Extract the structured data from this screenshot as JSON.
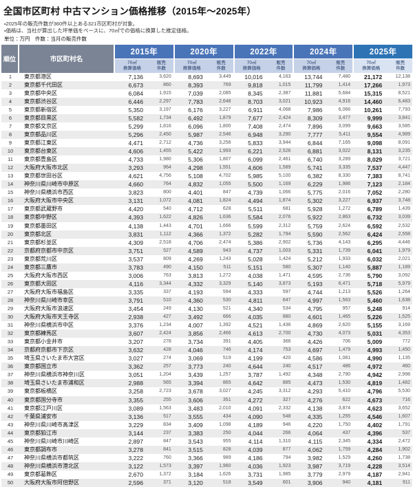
{
  "title": "全国市区町村 中古マンション価格推移（2015年～2025年）",
  "notes": [
    "・2025年の販売件数が360件以上ある321市区町村が対象。",
    "・価格は、当社が算出した坪単価をベースに、70㎡での価格に換算した推定価格。",
    "単位：万円　件数：当月の販売件数"
  ],
  "colors": {
    "header_gray": "#7a8494",
    "year_header_blue": "#4a74b8",
    "year_header_blue_2025": "#2e74b5",
    "subheader_blue": "#c5d1e7",
    "subheader_blue_2025": "#d9e3f2",
    "row_stripe": "#ebebeb"
  },
  "chart_data": {
    "type": "table",
    "title": "全国市区町村 中古マンション価格推移（2015年～2025年）",
    "unit_note": "単位：万円　件数：当月の販売件数",
    "rank_header": "順位",
    "name_header": "市区町村名",
    "years": [
      "2015年",
      "2020年",
      "2022年",
      "2024年",
      "2025年"
    ],
    "subcol_price": {
      "l1": "70㎡",
      "l2": "換算価格"
    },
    "subcol_count": {
      "l1": "販売",
      "l2": "件数"
    },
    "rows": [
      [
        1,
        "東京都港区",
        "7,136",
        "3,620",
        "8,693",
        "3,449",
        "10,016",
        "4,163",
        "13,744",
        "7,480",
        "21,172",
        "12,138"
      ],
      [
        2,
        "東京都千代田区",
        "6,673",
        "860",
        "8,393",
        "769",
        "9,818",
        "1,015",
        "11,799",
        "1,414",
        "17,266",
        "1,973"
      ],
      [
        3,
        "東京都中央区",
        "6,084",
        "1,915",
        "7,039",
        "2,085",
        "8,345",
        "2,387",
        "11,881",
        "5,684",
        "15,315",
        "8,521"
      ],
      [
        4,
        "東京都渋谷区",
        "6,446",
        "2,297",
        "7,783",
        "2,648",
        "8,703",
        "3,021",
        "10,923",
        "4,916",
        "14,460",
        "6,483"
      ],
      [
        5,
        "東京都新宿区",
        "5,350",
        "3,197",
        "6,176",
        "3,227",
        "6,911",
        "4,068",
        "7,986",
        "6,066",
        "10,261",
        "7,793"
      ],
      [
        6,
        "東京都目黒区",
        "5,582",
        "1,734",
        "6,492",
        "1,879",
        "7,677",
        "2,424",
        "8,309",
        "3,477",
        "9,999",
        "3,841"
      ],
      [
        7,
        "東京都文京区",
        "5,299",
        "1,816",
        "6,096",
        "1,800",
        "7,408",
        "2,474",
        "7,896",
        "3,099",
        "9,663",
        "3,585"
      ],
      [
        8,
        "東京都品川区",
        "5,296",
        "2,450",
        "5,987",
        "2,546",
        "6,948",
        "3,290",
        "7,777",
        "5,411",
        "9,554",
        "4,989"
      ],
      [
        9,
        "東京都江東区",
        "4,471",
        "2,712",
        "4,736",
        "3,256",
        "5,833",
        "3,944",
        "6,844",
        "7,165",
        "9,098",
        "8,091"
      ],
      [
        10,
        "東京都台東区",
        "4,606",
        "1,455",
        "5,422",
        "1,993",
        "6,221",
        "2,526",
        "6,881",
        "3,022",
        "8,131",
        "3,235"
      ],
      [
        11,
        "東京都豊島区",
        "4,733",
        "1,980",
        "5,306",
        "1,807",
        "6,099",
        "2,461",
        "6,740",
        "3,289",
        "8,029",
        "3,721"
      ],
      [
        12,
        "大阪府大阪市北区",
        "3,293",
        "964",
        "4,298",
        "1,551",
        "4,606",
        "1,589",
        "5,741",
        "3,335",
        "7,537",
        "4,447"
      ],
      [
        13,
        "東京都世田谷区",
        "4,621",
        "4,756",
        "5,108",
        "4,702",
        "5,985",
        "5,100",
        "6,382",
        "8,330",
        "7,383",
        "8,741"
      ],
      [
        14,
        "神奈川県川崎市中原区",
        "4,660",
        "764",
        "4,832",
        "1,055",
        "5,500",
        "1,169",
        "6,229",
        "1,986",
        "7,123",
        "2,184"
      ],
      [
        15,
        "神奈川県横浜市西区",
        "3,823",
        "800",
        "4,401",
        "847",
        "4,739",
        "1,066",
        "5,775",
        "2,016",
        "7,052",
        "2,280"
      ],
      [
        16,
        "大阪府大阪市中央区",
        "3,131",
        "1,072",
        "4,081",
        "1,824",
        "4,494",
        "1,874",
        "5,302",
        "3,227",
        "6,937",
        "3,748"
      ],
      [
        17,
        "東京都武蔵野市",
        "4,420",
        "540",
        "4,712",
        "628",
        "5,511",
        "681",
        "5,928",
        "1,272",
        "6,789",
        "1,439"
      ],
      [
        18,
        "東京都中野区",
        "4,393",
        "1,622",
        "4,826",
        "1,636",
        "5,584",
        "2,076",
        "5,922",
        "2,863",
        "6,732",
        "3,039"
      ],
      [
        19,
        "東京都墨田区",
        "4,138",
        "1,443",
        "4,701",
        "1,666",
        "5,599",
        "2,312",
        "5,759",
        "2,624",
        "6,592",
        "2,532"
      ],
      [
        20,
        "東京都北区",
        "3,831",
        "1,112",
        "4,366",
        "1,372",
        "5,282",
        "1,794",
        "5,590",
        "2,562",
        "6,424",
        "2,558"
      ],
      [
        21,
        "東京都杉並区",
        "4,309",
        "2,518",
        "4,706",
        "2,474",
        "5,386",
        "2,902",
        "5,736",
        "4,143",
        "6,295",
        "4,446"
      ],
      [
        22,
        "京都府京都市中京区",
        "3,751",
        "527",
        "4,589",
        "943",
        "4,737",
        "1,003",
        "5,331",
        "1,739",
        "6,041",
        "1,979"
      ],
      [
        23,
        "東京都荒川区",
        "3,537",
        "809",
        "4,269",
        "1,243",
        "5,028",
        "1,424",
        "5,212",
        "1,933",
        "6,032",
        "2,021"
      ],
      [
        24,
        "東京都三鷹市",
        "3,783",
        "490",
        "4,150",
        "511",
        "5,151",
        "580",
        "5,307",
        "1,140",
        "5,887",
        "1,189"
      ],
      [
        25,
        "大阪府大阪市西区",
        "3,006",
        "763",
        "3,813",
        "1,272",
        "4,038",
        "1,471",
        "4,595",
        "2,736",
        "5,790",
        "3,092"
      ],
      [
        26,
        "東京都大田区",
        "4,116",
        "3,344",
        "4,332",
        "3,329",
        "5,140",
        "3,873",
        "5,193",
        "6,471",
        "5,718",
        "5,979"
      ],
      [
        27,
        "大阪府大阪市福島区",
        "3,335",
        "337",
        "4,193",
        "594",
        "4,333",
        "597",
        "4,744",
        "1,213",
        "5,526",
        "1,264"
      ],
      [
        28,
        "神奈川県川崎市幸区",
        "3,791",
        "510",
        "4,360",
        "530",
        "4,811",
        "647",
        "4,997",
        "1,563",
        "5,460",
        "1,638"
      ],
      [
        29,
        "大阪府大阪市浪速区",
        "3,454",
        "249",
        "4,130",
        "521",
        "4,340",
        "534",
        "4,795",
        "957",
        "5,248",
        "914"
      ],
      [
        30,
        "大阪府大阪市天王寺区",
        "2,938",
        "427",
        "3,492",
        "666",
        "4,035",
        "880",
        "4,601",
        "1,465",
        "5,226",
        "1,525"
      ],
      [
        31,
        "神奈川県横浜市中区",
        "3,376",
        "1,234",
        "4,007",
        "1,392",
        "4,521",
        "1,436",
        "4,869",
        "2,620",
        "5,155",
        "3,169"
      ],
      [
        32,
        "東京都練馬区",
        "3,607",
        "2,424",
        "3,856",
        "2,466",
        "4,613",
        "2,700",
        "4,730",
        "4,073",
        "5,031",
        "4,353"
      ],
      [
        33,
        "東京都小金井市",
        "3,207",
        "278",
        "3,734",
        "391",
        "4,405",
        "366",
        "4,426",
        "706",
        "5,009",
        "772"
      ],
      [
        34,
        "京都府京都市下京区",
        "3,632",
        "428",
        "4,046",
        "746",
        "4,174",
        "753",
        "4,697",
        "1,479",
        "4,993",
        "1,450"
      ],
      [
        35,
        "埼玉県さいたま市大宮区",
        "3,027",
        "274",
        "3,069",
        "519",
        "4,199",
        "420",
        "4,586",
        "1,081",
        "4,990",
        "1,135"
      ],
      [
        36,
        "東京都国立市",
        "3,362",
        "257",
        "3,773",
        "240",
        "4,644",
        "240",
        "4,517",
        "486",
        "4,972",
        "460"
      ],
      [
        37,
        "神奈川県横浜市神奈川区",
        "3,051",
        "1,204",
        "3,439",
        "1,257",
        "3,787",
        "1,492",
        "4,348",
        "2,790",
        "4,942",
        "2,998"
      ],
      [
        38,
        "埼玉県さいたま市浦和区",
        "2,988",
        "565",
        "3,394",
        "865",
        "4,642",
        "885",
        "4,473",
        "1,530",
        "4,819",
        "1,482"
      ],
      [
        39,
        "東京都板橋区",
        "3,258",
        "2,723",
        "3,678",
        "3,027",
        "4,245",
        "3,312",
        "4,293",
        "5,410",
        "4,796",
        "5,530"
      ],
      [
        40,
        "東京都国分寺市",
        "3,355",
        "255",
        "3,606",
        "351",
        "4,272",
        "327",
        "4,276",
        "622",
        "4,673",
        "716"
      ],
      [
        41,
        "東京都江戸川区",
        "3,089",
        "1,563",
        "3,483",
        "2,010",
        "4,091",
        "2,332",
        "4,138",
        "3,874",
        "4,623",
        "3,652"
      ],
      [
        42,
        "千葉県浦安市",
        "3,136",
        "517",
        "3,555",
        "434",
        "4,090",
        "548",
        "4,335",
        "1,255",
        "4,546",
        "1,607"
      ],
      [
        43,
        "神奈川県川崎市高津区",
        "3,229",
        "834",
        "3,409",
        "1,098",
        "4,189",
        "946",
        "4,220",
        "1,750",
        "4,402",
        "1,791"
      ],
      [
        44,
        "東京都狛江市",
        "3,144",
        "237",
        "3,383",
        "250",
        "4,044",
        "266",
        "4,064",
        "437",
        "4,396",
        "537"
      ],
      [
        45,
        "神奈川県川崎市川崎区",
        "2,897",
        "847",
        "3,543",
        "955",
        "4,114",
        "1,310",
        "4,115",
        "2,345",
        "4,334",
        "2,472"
      ],
      [
        46,
        "東京都調布市",
        "3,278",
        "841",
        "3,515",
        "828",
        "4,039",
        "877",
        "4,062",
        "1,759",
        "4,284",
        "1,902"
      ],
      [
        47,
        "神奈川県横浜市都筑区",
        "3,222",
        "760",
        "3,366",
        "989",
        "4,186",
        "794",
        "3,982",
        "1,529",
        "4,260",
        "1,738"
      ],
      [
        48,
        "神奈川県横浜市港北区",
        "3,122",
        "1,573",
        "3,397",
        "1,960",
        "4,036",
        "1,923",
        "3,987",
        "3,719",
        "4,228",
        "3,514"
      ],
      [
        49,
        "東京都葛飾区",
        "2,670",
        "1,372",
        "3,184",
        "1,626",
        "3,731",
        "1,985",
        "3,779",
        "2,979",
        "4,187",
        "2,941"
      ],
      [
        50,
        "大阪府大阪市阿倍野区",
        "2,596",
        "371",
        "3,120",
        "518",
        "3,549",
        "601",
        "3,906",
        "940",
        "4,181",
        "911"
      ]
    ]
  }
}
